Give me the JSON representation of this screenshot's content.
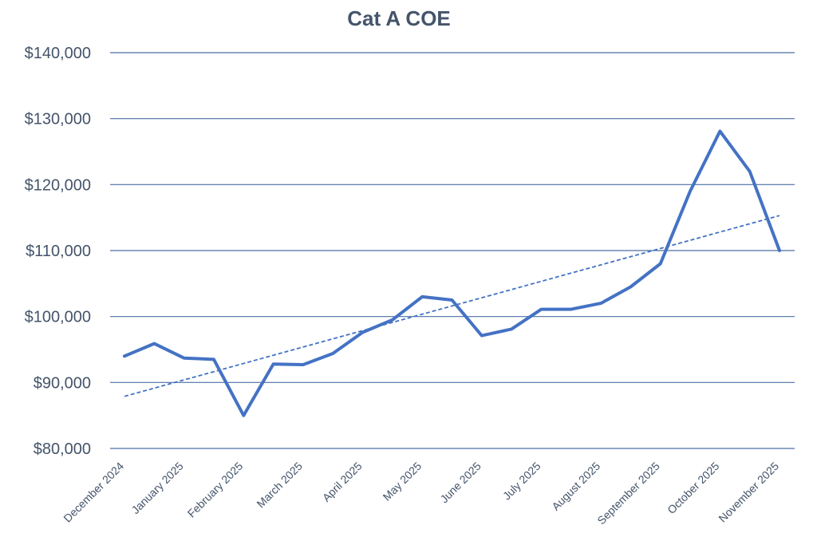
{
  "chart_data": {
    "type": "line",
    "title": "Cat A COE",
    "xlabel": "",
    "ylabel": "",
    "ylim": [
      80000,
      140000
    ],
    "y_ticks": [
      80000,
      90000,
      100000,
      110000,
      120000,
      130000,
      140000
    ],
    "y_tick_labels": [
      "$80,000",
      "$90,000",
      "$100,000",
      "$110,000",
      "$120,000",
      "$130,000",
      "$140,000"
    ],
    "x_tick_labels": [
      "December 2024",
      "January 2025",
      "February 2025",
      "March 2025",
      "April 2025",
      "May 2025",
      "June 2025",
      "July 2025",
      "August 2025",
      "September 2025",
      "October 2025",
      "November 2025"
    ],
    "grid": true,
    "series": [
      {
        "values": [
          94000,
          95900,
          93700,
          93500,
          85000,
          92800,
          92700,
          94400,
          97600,
          99500,
          103000,
          102500,
          97100,
          98100,
          101100,
          101100,
          102000,
          104500,
          108000,
          119000,
          128100,
          122000,
          110000
        ],
        "color": "#4472c4",
        "style": "solid"
      }
    ],
    "trendline": {
      "type": "linear",
      "start": 87900,
      "end": 115300,
      "color": "#4472c4",
      "style": "dashed"
    }
  }
}
